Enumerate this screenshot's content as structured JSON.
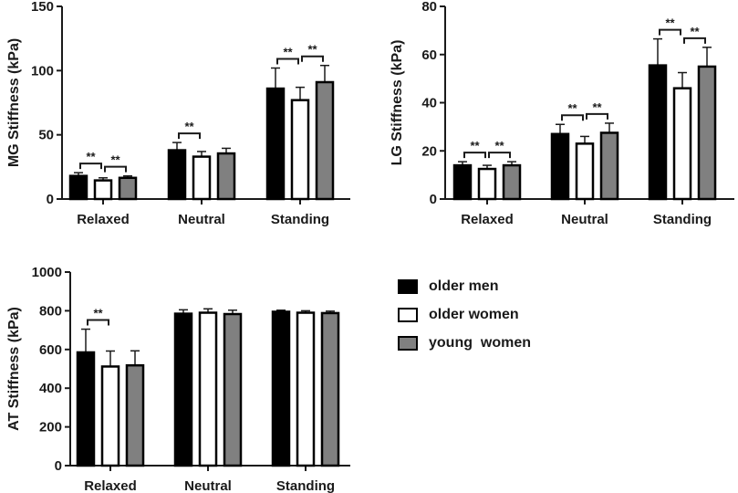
{
  "chart_data": [
    {
      "type": "bar",
      "id": "mg",
      "title": "",
      "xlabel": "",
      "ylabel": "MG Stiffness (kPa)",
      "ylim": [
        0,
        150
      ],
      "yticks": [
        0,
        50,
        100,
        150
      ],
      "categories": [
        "Relaxed",
        "Neutral",
        "Standing"
      ],
      "series": [
        {
          "name": "older men",
          "values": [
            18,
            38,
            86
          ],
          "errors": [
            2.5,
            6,
            16
          ]
        },
        {
          "name": "older women",
          "values": [
            14.5,
            33,
            77
          ],
          "errors": [
            2,
            4,
            10
          ]
        },
        {
          "name": "young women",
          "values": [
            16.5,
            35.5,
            91
          ],
          "errors": [
            1.5,
            4,
            13
          ]
        }
      ],
      "significance": [
        {
          "category": 0,
          "from": 0,
          "to": 1,
          "label": "**"
        },
        {
          "category": 0,
          "from": 1,
          "to": 2,
          "label": "**"
        },
        {
          "category": 1,
          "from": 0,
          "to": 1,
          "label": "**"
        },
        {
          "category": 2,
          "from": 0,
          "to": 1,
          "label": "**"
        },
        {
          "category": 2,
          "from": 1,
          "to": 2,
          "label": "**"
        }
      ]
    },
    {
      "type": "bar",
      "id": "lg",
      "title": "",
      "xlabel": "",
      "ylabel": "LG Stiffness (kPa)",
      "ylim": [
        0,
        80
      ],
      "yticks": [
        0,
        20,
        40,
        60,
        80
      ],
      "categories": [
        "Relaxed",
        "Neutral",
        "Standing"
      ],
      "series": [
        {
          "name": "older men",
          "values": [
            14,
            27,
            55.5
          ],
          "errors": [
            1.5,
            4,
            11
          ]
        },
        {
          "name": "older women",
          "values": [
            12.5,
            23,
            46
          ],
          "errors": [
            1.5,
            3,
            6.5
          ]
        },
        {
          "name": "young women",
          "values": [
            14,
            27.5,
            55
          ],
          "errors": [
            1.5,
            4,
            8
          ]
        }
      ],
      "significance": [
        {
          "category": 0,
          "from": 0,
          "to": 1,
          "label": "**"
        },
        {
          "category": 0,
          "from": 1,
          "to": 2,
          "label": "**"
        },
        {
          "category": 1,
          "from": 0,
          "to": 1,
          "label": "**"
        },
        {
          "category": 1,
          "from": 1,
          "to": 2,
          "label": "**"
        },
        {
          "category": 2,
          "from": 0,
          "to": 1,
          "label": "**"
        },
        {
          "category": 2,
          "from": 1,
          "to": 2,
          "label": "**"
        }
      ]
    },
    {
      "type": "bar",
      "id": "at",
      "title": "",
      "xlabel": "",
      "ylabel": "AT Stiffness (kPa)",
      "ylim": [
        0,
        1000
      ],
      "yticks": [
        0,
        200,
        400,
        600,
        800,
        1000
      ],
      "categories": [
        "Relaxed",
        "Neutral",
        "Standing"
      ],
      "series": [
        {
          "name": "older men",
          "values": [
            585,
            785,
            795
          ],
          "errors": [
            120,
            20,
            8
          ]
        },
        {
          "name": "older women",
          "values": [
            512,
            790,
            790
          ],
          "errors": [
            80,
            20,
            10
          ]
        },
        {
          "name": "young women",
          "values": [
            518,
            783,
            788
          ],
          "errors": [
            75,
            20,
            10
          ]
        }
      ],
      "significance": [
        {
          "category": 0,
          "from": 0,
          "to": 1,
          "label": "**"
        }
      ]
    }
  ],
  "legend": {
    "items": [
      {
        "label": "older men",
        "color": "#000000"
      },
      {
        "label": "older women",
        "color": "#ffffff"
      },
      {
        "label": "young  women",
        "color": "#808080"
      }
    ]
  },
  "colors": {
    "older_men": "#000000",
    "older_women": "#ffffff",
    "young_women": "#808080",
    "axis": "#1a1a1a"
  }
}
